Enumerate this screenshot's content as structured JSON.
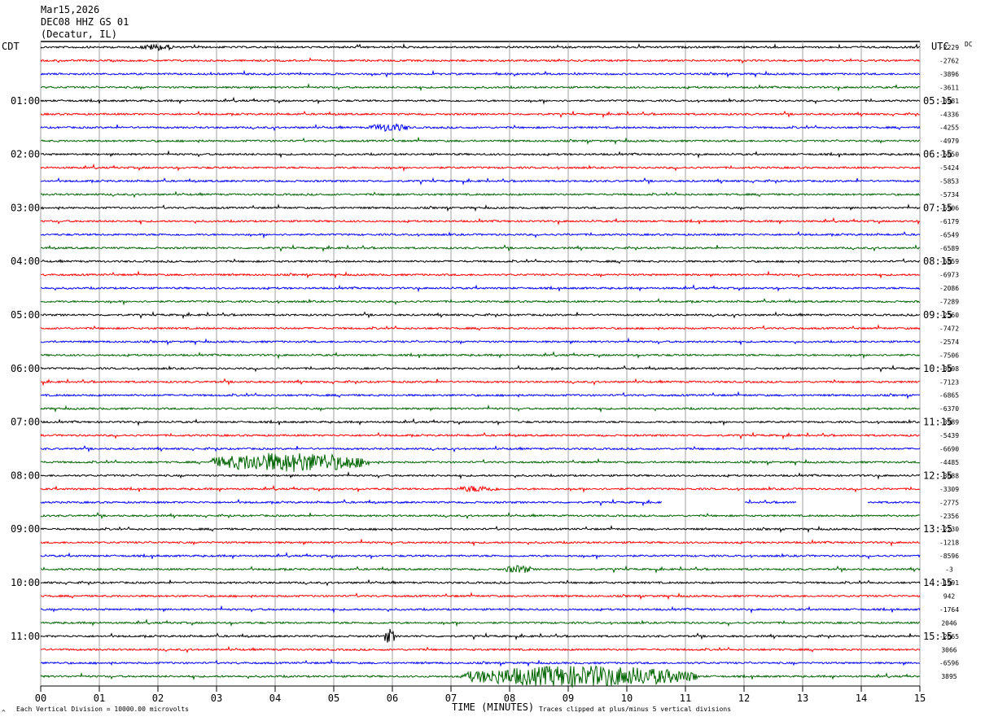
{
  "header": {
    "date": "Mar15,2026",
    "station": "DEC08 HHZ GS 01",
    "location": "(Decatur, IL)"
  },
  "left_axis_label": "CDT",
  "right_axis_label": "UTC",
  "dc_label": "DC",
  "footer": {
    "scale_note": "Each Vertical Division = 10000.00 microvolts",
    "clip_note": "Traces clipped at plus/minus 5 vertical divisions",
    "corner_mark": "^"
  },
  "colors": {
    "cycle": [
      "#000000",
      "#ff0000",
      "#0000ff",
      "#006400"
    ],
    "grid": "#a0a0a0"
  },
  "chart_data": {
    "type": "line",
    "xlabel": "TIME (MINUTES)",
    "x_ticks": [
      "00",
      "01",
      "02",
      "03",
      "04",
      "05",
      "06",
      "07",
      "08",
      "09",
      "10",
      "11",
      "12",
      "13",
      "14",
      "15"
    ],
    "xlim": [
      0,
      15
    ],
    "left_times": [
      "01:00",
      "02:00",
      "03:00",
      "04:00",
      "05:00",
      "06:00",
      "07:00",
      "08:00",
      "09:00",
      "10:00",
      "11:00"
    ],
    "right_times": [
      "05:15",
      "06:15",
      "07:15",
      "08:15",
      "09:15",
      "10:15",
      "11:15",
      "12:15",
      "13:15",
      "14:15",
      "15:15"
    ],
    "dc_offsets": [
      "-2229",
      "-2762",
      "-3896",
      "-3611",
      "-3981",
      "-4336",
      "-4255",
      "-4979",
      "-5050",
      "-5424",
      "-5853",
      "-5734",
      "-5906",
      "-6179",
      "-6549",
      "-6589",
      "-6859",
      "-6973",
      "-2086",
      "-7289",
      "-2560",
      "-7472",
      "-2574",
      "-7506",
      "-3098",
      "-7123",
      "-6865",
      "-6370",
      "-3989",
      "-5439",
      "-6690",
      "-4485",
      "-3688",
      "-3309",
      "-2775",
      "-2356",
      "-2230",
      "-1218",
      "-8596",
      "-3",
      "-1991",
      "942",
      "-1764",
      "2046",
      "-2665",
      "3066",
      "-6596",
      "3895"
    ],
    "events": [
      {
        "row": 0,
        "start": 1.7,
        "end": 2.3,
        "amp": 4
      },
      {
        "row": 6,
        "start": 5.6,
        "end": 6.3,
        "amp": 5
      },
      {
        "row": 31,
        "start": 2.9,
        "end": 5.6,
        "amp": 12
      },
      {
        "row": 33,
        "start": 7.1,
        "end": 7.8,
        "amp": 4
      },
      {
        "row": 39,
        "start": 7.9,
        "end": 8.4,
        "amp": 5
      },
      {
        "row": 44,
        "start": 5.85,
        "end": 6.05,
        "amp": 9
      },
      {
        "row": 47,
        "start": 7.2,
        "end": 11.2,
        "amp": 13
      }
    ],
    "gaps": [
      {
        "row": 34,
        "start": 10.6,
        "end": 12.0
      },
      {
        "row": 34,
        "start": 12.9,
        "end": 14.1
      }
    ]
  }
}
